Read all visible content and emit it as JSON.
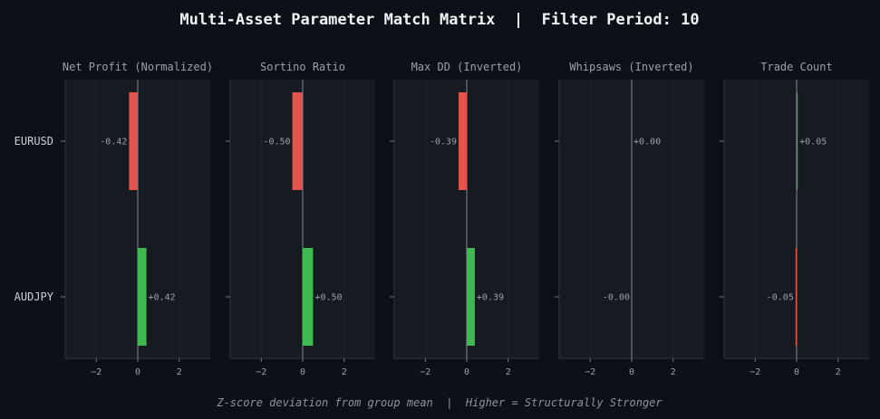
{
  "title": "Multi-Asset Parameter Match Matrix  |  Filter Period: 10",
  "footer": "Z-score deviation from group mean  |  Higher = Structurally Stronger",
  "colors": {
    "background": "#0d1117",
    "panel": "#161b22",
    "positive": "#3fb950",
    "negative": "#e5534b",
    "zero_line": "#6e7681",
    "text": "#9aa0a6"
  },
  "chart_data": {
    "type": "bar",
    "orientation": "horizontal",
    "categories": [
      "EURUSD",
      "AUDJPY"
    ],
    "xlim": [
      -3.5,
      3.5
    ],
    "xticks": [
      -2,
      0,
      2
    ],
    "xtick_labels": [
      "−2",
      "0",
      "2"
    ],
    "panels": [
      {
        "title": "Net Profit (Normalized)",
        "values": [
          -0.42,
          0.42
        ],
        "labels": [
          "-0.42",
          "+0.42"
        ]
      },
      {
        "title": "Sortino Ratio",
        "values": [
          -0.5,
          0.5
        ],
        "labels": [
          "-0.50",
          "+0.50"
        ]
      },
      {
        "title": "Max DD (Inverted)",
        "values": [
          -0.39,
          0.39
        ],
        "labels": [
          "-0.39",
          "+0.39"
        ]
      },
      {
        "title": "Whipsaws (Inverted)",
        "values": [
          0.0,
          -0.0
        ],
        "labels": [
          "+0.00",
          "-0.00"
        ]
      },
      {
        "title": "Trade Count",
        "values": [
          0.05,
          -0.05
        ],
        "labels": [
          "+0.05",
          "-0.05"
        ]
      }
    ]
  }
}
